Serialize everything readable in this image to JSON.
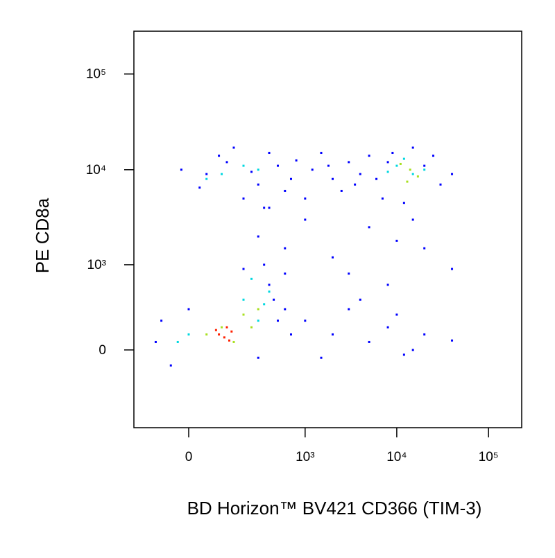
{
  "chart_data": {
    "type": "scatter",
    "xlabel": "BD Horizon™ BV421 CD366 (TIM-3)",
    "ylabel": "PE CD8a",
    "xscale": "biexponential",
    "yscale": "biexponential",
    "xlim": [
      -200,
      230000
    ],
    "ylim": [
      -830,
      280000
    ],
    "xticks": [
      0,
      {
        "value": 1000,
        "label": "10³"
      },
      {
        "value": 10000,
        "label": "10⁴"
      },
      {
        "value": 100000,
        "label": "10⁵"
      }
    ],
    "yticks": [
      0,
      {
        "value": 1000,
        "label": "10³"
      },
      {
        "value": 10000,
        "label": "10⁴"
      },
      {
        "value": 100000,
        "label": "10⁵"
      }
    ],
    "series": [
      {
        "color": "#0000ff",
        "x": [
          50,
          120,
          300,
          500,
          700,
          -20,
          200,
          400,
          600,
          90,
          250,
          800,
          30,
          350,
          150,
          1200,
          2000,
          3000,
          1500,
          2500,
          4000,
          1000,
          5000,
          1800,
          3500,
          6000,
          9000,
          20000,
          30000,
          25000,
          7000,
          40000,
          12000,
          15000,
          8000,
          300,
          600,
          1000,
          2000,
          5000,
          10000,
          15000,
          400,
          3000,
          8000,
          20000,
          40000,
          1000,
          2000,
          3000,
          5000,
          8000,
          10000,
          15000,
          20000,
          1500,
          600,
          4000,
          12000,
          40000,
          -100,
          -50,
          0,
          400,
          500,
          300,
          600,
          200,
          -80,
          700,
          350,
          450
        ],
        "y": [
          9000,
          12000,
          7000,
          11000,
          8000,
          10000,
          5000,
          15000,
          6000,
          14000,
          9500,
          12500,
          6500,
          4000,
          17000,
          10000,
          8000,
          12000,
          15000,
          6000,
          9000,
          5000,
          14000,
          11000,
          7000,
          8000,
          15000,
          11000,
          7000,
          14000,
          5000,
          9000,
          4500,
          17000,
          12000,
          2000,
          1500,
          3000,
          1200,
          2500,
          1800,
          3000,
          4000,
          800,
          600,
          1500,
          900,
          200,
          100,
          300,
          50,
          150,
          250,
          0,
          100,
          -50,
          300,
          400,
          -30,
          60,
          50,
          -100,
          300,
          600,
          200,
          -50,
          800,
          900,
          200,
          100,
          1000,
          400
        ]
      },
      {
        "color": "#00d8e0",
        "x": [
          100,
          200,
          300,
          50,
          10000,
          15000,
          12000,
          20000,
          8000,
          200,
          300,
          400,
          0,
          -30,
          250,
          350
        ],
        "y": [
          9000,
          11000,
          10000,
          8000,
          11000,
          9000,
          13000,
          10000,
          9500,
          400,
          200,
          500,
          100,
          50,
          700,
          350
        ]
      },
      {
        "color": "#a8e020",
        "x": [
          14000,
          11000,
          17000,
          13000,
          100,
          200,
          150,
          50,
          250,
          300
        ],
        "y": [
          10000,
          11500,
          8500,
          7500,
          150,
          250,
          50,
          100,
          150,
          300
        ]
      },
      {
        "color": "#ff2000",
        "x": [
          90,
          120,
          110,
          140,
          80,
          130
        ],
        "y": [
          100,
          150,
          80,
          120,
          130,
          60
        ]
      }
    ]
  }
}
